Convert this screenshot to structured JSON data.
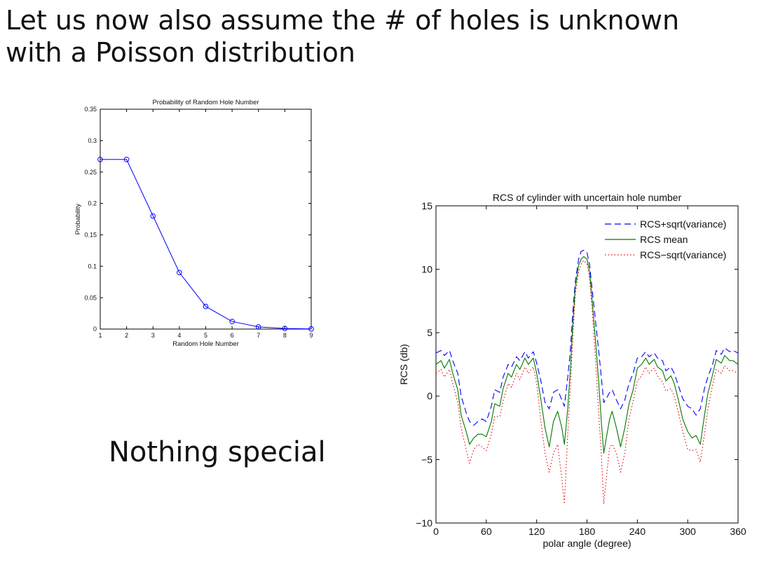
{
  "slide": {
    "title_line1": "Let us now also assume the # of holes is unknown",
    "title_line2": "with a Poisson distribution",
    "caption": "Nothing special"
  },
  "chart_data": [
    {
      "type": "line",
      "title": "Probability of Random Hole Number",
      "xlabel": "Random Hole Number",
      "ylabel": "Probability",
      "xlim": [
        1,
        9
      ],
      "ylim": [
        0,
        0.35
      ],
      "xticks": [
        "1",
        "2",
        "3",
        "4",
        "5",
        "6",
        "7",
        "8",
        "9"
      ],
      "yticks": [
        "0",
        "0.05",
        "0.1",
        "0.15",
        "0.2",
        "0.25",
        "0.3",
        "0.35"
      ],
      "marker": "circle",
      "color": "#0000ff",
      "series": [
        {
          "x": [
            1,
            2,
            3,
            4,
            5,
            6,
            7,
            8,
            9
          ],
          "values": [
            0.27,
            0.27,
            0.18,
            0.09,
            0.036,
            0.012,
            0.0034,
            0.0009,
            0.0002
          ]
        }
      ]
    },
    {
      "type": "line",
      "title": "RCS of cylinder with uncertain hole number",
      "xlabel": "polar angle (degree)",
      "ylabel": "RCS (db)",
      "xlim": [
        0,
        360
      ],
      "ylim": [
        -10,
        15
      ],
      "xticks": [
        "0",
        "60",
        "120",
        "180",
        "240",
        "300",
        "360"
      ],
      "yticks": [
        "−10",
        "−5",
        "0",
        "5",
        "10",
        "15"
      ],
      "legend_position": "top-right",
      "series": [
        {
          "name": "RCS+sqrt(variance)",
          "color": "#0000ff",
          "style": "dashed",
          "x": [
            0,
            6,
            10,
            16,
            20,
            26,
            30,
            36,
            40,
            45,
            50,
            55,
            60,
            66,
            70,
            76,
            80,
            86,
            90,
            96,
            100,
            106,
            110,
            116,
            120,
            125,
            130,
            135,
            140,
            145,
            150,
            153,
            157,
            160,
            163,
            166,
            170,
            173,
            176,
            180,
            183,
            186,
            190,
            194,
            197,
            200,
            203,
            207,
            210,
            215,
            220,
            225,
            230,
            235,
            240,
            245,
            250,
            254,
            260,
            264,
            270,
            274,
            280,
            284,
            290,
            294,
            300,
            305,
            310,
            315,
            320,
            324,
            330,
            334,
            340,
            344,
            350,
            354,
            360
          ],
          "values": [
            3.4,
            3.6,
            3.2,
            3.6,
            2.8,
            1.8,
            0.0,
            -1.3,
            -2.0,
            -2.3,
            -2.0,
            -1.8,
            -2.0,
            -0.8,
            0.5,
            0.3,
            1.5,
            2.5,
            2.3,
            3.1,
            2.8,
            3.5,
            3.0,
            3.5,
            2.6,
            1.2,
            -0.5,
            -1.0,
            0.3,
            0.5,
            -0.3,
            -0.8,
            1.5,
            3.5,
            6.5,
            9.0,
            10.8,
            11.4,
            11.5,
            11.3,
            10.4,
            8.5,
            6.0,
            3.5,
            1.5,
            -0.5,
            -0.2,
            0.3,
            0.5,
            -0.3,
            -1.0,
            -0.3,
            1.0,
            1.8,
            3.0,
            3.1,
            3.5,
            3.1,
            3.4,
            3.0,
            2.8,
            2.0,
            2.3,
            1.8,
            0.6,
            -0.2,
            -0.8,
            -1.0,
            -1.5,
            -1.0,
            0.6,
            1.5,
            2.6,
            3.6,
            3.3,
            3.8,
            3.5,
            3.6,
            3.4
          ]
        },
        {
          "name": "RCS mean",
          "color": "#007a00",
          "style": "solid",
          "x": [
            0,
            6,
            10,
            16,
            20,
            26,
            30,
            36,
            40,
            45,
            50,
            55,
            60,
            66,
            70,
            76,
            80,
            86,
            90,
            96,
            100,
            106,
            110,
            116,
            120,
            125,
            130,
            135,
            140,
            145,
            150,
            153,
            157,
            160,
            163,
            166,
            170,
            173,
            176,
            180,
            183,
            186,
            190,
            194,
            197,
            200,
            203,
            207,
            210,
            215,
            220,
            225,
            230,
            235,
            240,
            245,
            250,
            254,
            260,
            264,
            270,
            274,
            280,
            284,
            290,
            294,
            300,
            305,
            310,
            315,
            320,
            324,
            330,
            334,
            340,
            344,
            350,
            354,
            360
          ],
          "values": [
            2.5,
            2.8,
            2.2,
            2.9,
            1.8,
            0.5,
            -1.5,
            -2.8,
            -3.8,
            -3.3,
            -3.0,
            -3.0,
            -3.2,
            -2.0,
            -0.6,
            -0.8,
            0.6,
            1.8,
            1.5,
            2.5,
            2.1,
            3.0,
            2.5,
            3.0,
            1.8,
            -0.3,
            -2.5,
            -4.0,
            -2.0,
            -1.2,
            -2.5,
            -3.8,
            -1.0,
            2.0,
            5.5,
            8.5,
            10.3,
            10.8,
            11.0,
            10.8,
            9.8,
            7.6,
            4.5,
            1.0,
            -2.0,
            -4.5,
            -3.3,
            -1.8,
            -1.2,
            -2.5,
            -4.0,
            -2.5,
            -0.6,
            0.5,
            2.2,
            2.5,
            3.0,
            2.5,
            2.9,
            2.3,
            2.0,
            1.2,
            1.6,
            1.0,
            -0.6,
            -1.8,
            -2.8,
            -3.3,
            -3.1,
            -3.8,
            -1.5,
            0.2,
            1.8,
            2.9,
            2.6,
            3.2,
            2.8,
            2.8,
            2.5
          ]
        },
        {
          "name": "RCS−sqrt(variance)",
          "color": "#e60000",
          "style": "dotted",
          "x": [
            0,
            6,
            10,
            16,
            20,
            26,
            30,
            36,
            40,
            45,
            50,
            55,
            60,
            66,
            70,
            76,
            80,
            86,
            90,
            96,
            100,
            106,
            110,
            116,
            120,
            125,
            130,
            135,
            140,
            145,
            150,
            153,
            157,
            160,
            163,
            166,
            170,
            173,
            176,
            180,
            183,
            186,
            190,
            194,
            197,
            200,
            203,
            207,
            210,
            215,
            220,
            225,
            230,
            235,
            240,
            245,
            250,
            254,
            260,
            264,
            270,
            274,
            280,
            284,
            290,
            294,
            300,
            305,
            310,
            315,
            320,
            324,
            330,
            334,
            340,
            344,
            350,
            354,
            360
          ],
          "values": [
            1.8,
            2.1,
            1.5,
            2.1,
            1.0,
            -0.5,
            -2.5,
            -4.2,
            -5.3,
            -4.2,
            -3.8,
            -4.0,
            -4.3,
            -3.0,
            -1.6,
            -1.6,
            -0.4,
            1.0,
            0.7,
            1.8,
            1.3,
            2.3,
            1.8,
            2.3,
            1.0,
            -2.0,
            -4.5,
            -6.0,
            -4.5,
            -3.8,
            -6.5,
            -8.5,
            -3.0,
            0.5,
            4.5,
            8.0,
            9.8,
            10.4,
            10.7,
            10.4,
            9.3,
            7.0,
            3.0,
            -1.5,
            -4.5,
            -8.5,
            -6.5,
            -4.0,
            -3.8,
            -4.5,
            -6.0,
            -4.5,
            -1.8,
            -0.4,
            1.2,
            1.6,
            2.3,
            1.8,
            2.2,
            1.6,
            1.1,
            0.4,
            0.6,
            0.0,
            -1.6,
            -2.8,
            -4.2,
            -4.3,
            -4.2,
            -5.2,
            -3.0,
            -1.0,
            1.0,
            2.1,
            1.8,
            2.4,
            2.0,
            2.0,
            1.8
          ]
        }
      ]
    }
  ]
}
